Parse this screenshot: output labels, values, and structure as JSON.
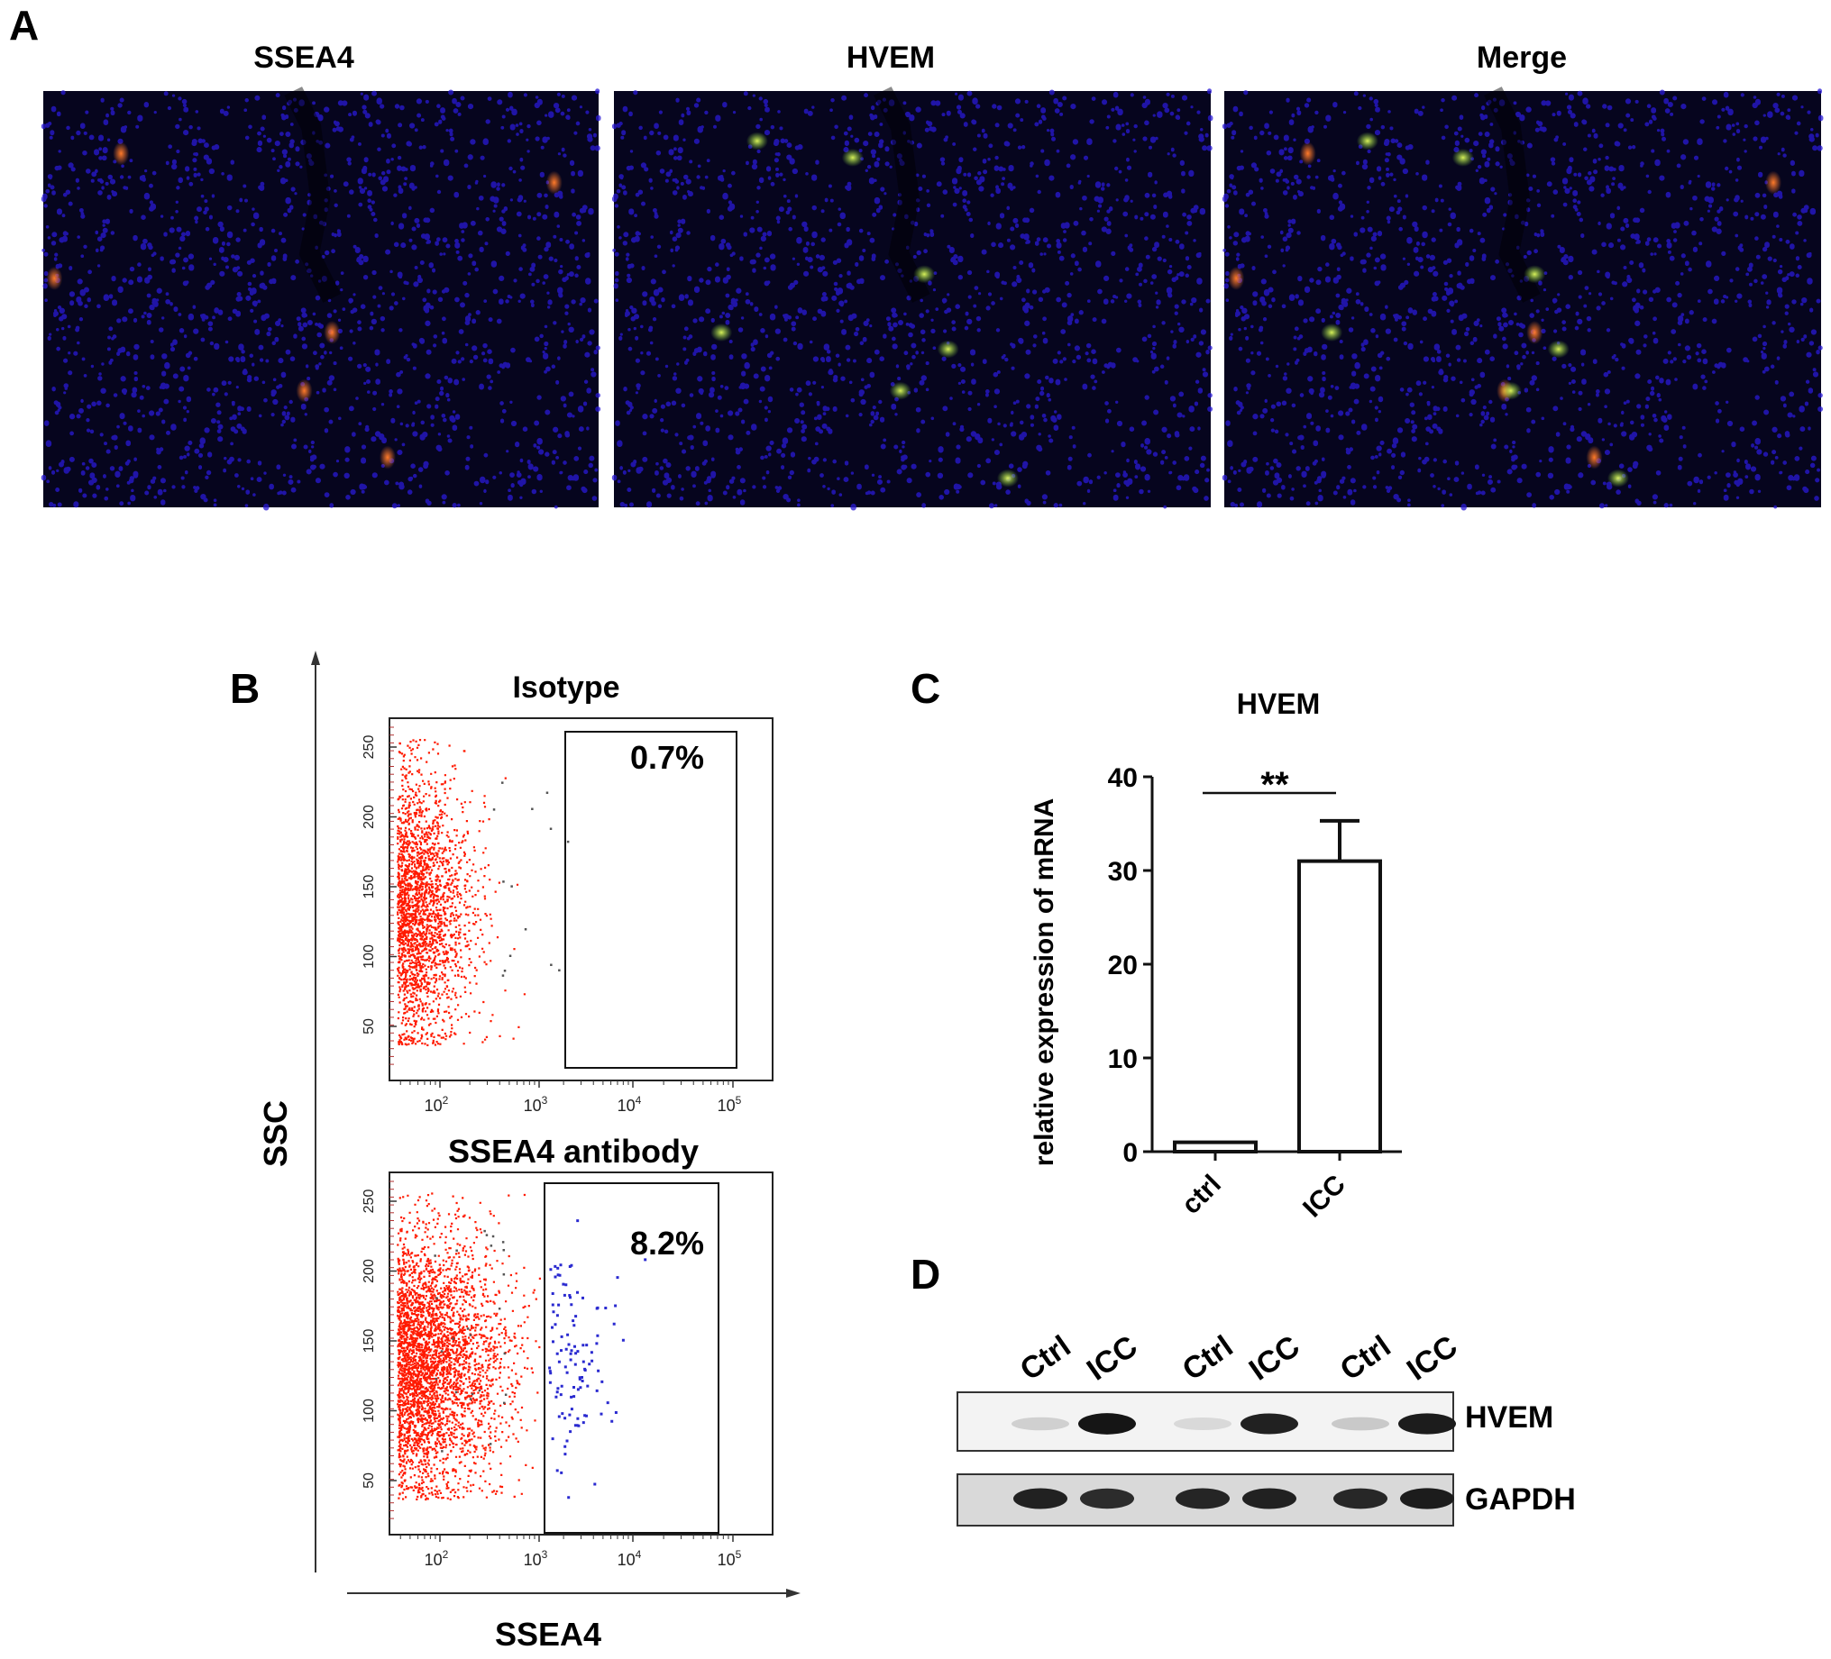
{
  "panels": {
    "a": {
      "letter": "A",
      "images": [
        {
          "title": "SSEA4"
        },
        {
          "title": "HVEM"
        },
        {
          "title": "Merge"
        }
      ]
    },
    "b": {
      "letter": "B",
      "y_axis_label": "SSC",
      "x_axis_label": "SSEA4",
      "x_ticks": [
        {
          "base": "10",
          "exp": "2"
        },
        {
          "base": "10",
          "exp": "3"
        },
        {
          "base": "10",
          "exp": "4"
        },
        {
          "base": "10",
          "exp": "5"
        }
      ],
      "y_ticks": [
        "250",
        "200",
        "150",
        "100",
        "50"
      ],
      "plots": [
        {
          "title": "Isotype",
          "gate_percent": "0.7%",
          "events_in_gate": "sparse"
        },
        {
          "title": "SSEA4 antibody",
          "gate_percent": "8.2%",
          "events_in_gate": "many"
        }
      ]
    },
    "c": {
      "letter": "C",
      "significance": "**"
    },
    "d": {
      "letter": "D",
      "lanes": [
        "Ctrl",
        "ICC",
        "Ctrl",
        "ICC",
        "Ctrl",
        "ICC"
      ],
      "bands": [
        {
          "label": "HVEM",
          "intensities": [
            0.12,
            0.95,
            0.08,
            0.9,
            0.15,
            0.92
          ]
        },
        {
          "label": "GAPDH",
          "intensities": [
            0.9,
            0.85,
            0.88,
            0.9,
            0.87,
            0.92
          ]
        }
      ]
    }
  },
  "chart_data": {
    "type": "bar",
    "title": "HVEM",
    "categories": [
      "ctrl",
      "ICC"
    ],
    "values": [
      1,
      31
    ],
    "error": [
      0,
      4.3
    ],
    "xlabel": "",
    "ylabel": "relative expression of mRNA",
    "ylim": [
      0,
      40
    ],
    "yticks": [
      0,
      10,
      20,
      30,
      40
    ],
    "grid": false
  },
  "colors": {
    "nuclei": "#2a1ad6",
    "ssea4_signal": "#e0302a",
    "hvem_signal": "#7fd13b",
    "flow_dots": "#ff1a00",
    "gated_dots": "#2a2ad0"
  }
}
